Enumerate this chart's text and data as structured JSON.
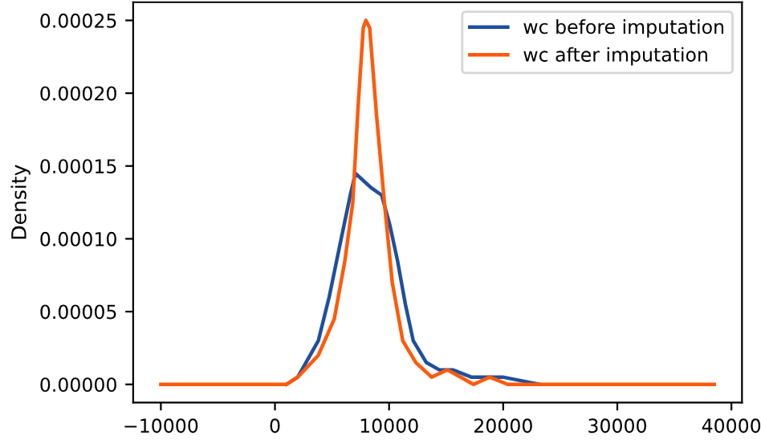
{
  "chart_data": {
    "type": "line",
    "ylabel": "Density",
    "series": [
      {
        "name": "wc before imputation",
        "color": "#1f4f9e",
        "x": [
          1000,
          2000,
          3800,
          4750,
          5670,
          6600,
          7050,
          7740,
          8430,
          9350,
          10050,
          10740,
          11430,
          12120,
          13270,
          14400,
          15580,
          17200,
          19950,
          23200
        ],
        "values": [
          0,
          5e-06,
          3e-05,
          6e-05,
          9.5e-05,
          0.00013,
          0.000145,
          0.00014,
          0.000135,
          0.00013,
          0.00011,
          8.5e-05,
          5.5e-05,
          3e-05,
          1.5e-05,
          1e-05,
          1e-05,
          5e-06,
          5e-06,
          0
        ]
      },
      {
        "name": "wc after imputation",
        "color": "#ff5a0a",
        "x": [
          -10000,
          0,
          1000,
          2000,
          3800,
          5200,
          6130,
          6820,
          7280,
          7740,
          7970,
          8300,
          8900,
          9590,
          10280,
          11200,
          12350,
          13730,
          15100,
          16270,
          17400,
          18800,
          20400,
          23200,
          26400,
          28200,
          38500
        ],
        "values": [
          0,
          0,
          0,
          5e-06,
          2e-05,
          4.5e-05,
          8.5e-05,
          0.000125,
          0.00019,
          0.000245,
          0.00025,
          0.000245,
          0.000185,
          0.000125,
          7e-05,
          3e-05,
          1.5e-05,
          5e-06,
          1e-05,
          5e-06,
          0,
          5e-06,
          0,
          0,
          0,
          0,
          0
        ]
      }
    ],
    "xlim": [
      -12425,
      40925
    ],
    "ylim": [
      -1.25e-05,
      0.0002625
    ],
    "xticks": [
      -10000,
      0,
      10000,
      20000,
      30000,
      40000
    ],
    "yticks": [
      {
        "value": 0,
        "label": "0.00000"
      },
      {
        "value": 5e-05,
        "label": "0.00005"
      },
      {
        "value": 0.0001,
        "label": "0.00010"
      },
      {
        "value": 0.00015,
        "label": "0.00015"
      },
      {
        "value": 0.0002,
        "label": "0.00020"
      },
      {
        "value": 0.00025,
        "label": "0.00025"
      }
    ],
    "legend": "top right",
    "grid": false,
    "marker": "none",
    "line_style": "solid"
  }
}
